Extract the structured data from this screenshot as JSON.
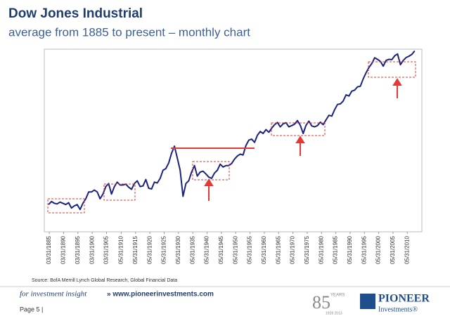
{
  "chart_data": {
    "type": "line",
    "title": "Dow Jones Industrial",
    "subtitle": "average from 1885 to present – monthly chart",
    "source": "Source: BofA Merrill Lynch Global Research, Global Financial Data",
    "color": "#1a237e",
    "yscale": "log",
    "ylim": [
      14,
      16000
    ],
    "xlim": [
      1883.5,
      2015.5
    ],
    "x": [
      1885,
      1886,
      1887,
      1888,
      1889,
      1890,
      1891,
      1892,
      1893,
      1894,
      1895,
      1896,
      1897,
      1898,
      1899,
      1900,
      1901,
      1902,
      1903,
      1904,
      1905,
      1906,
      1907,
      1908,
      1909,
      1910,
      1911,
      1912,
      1913,
      1914,
      1915,
      1916,
      1917,
      1918,
      1919,
      1920,
      1921,
      1922,
      1923,
      1924,
      1925,
      1926,
      1927,
      1928,
      1929,
      1930,
      1931,
      1932,
      1933,
      1934,
      1935,
      1936,
      1937,
      1938,
      1939,
      1940,
      1941,
      1942,
      1943,
      1944,
      1945,
      1946,
      1947,
      1948,
      1949,
      1950,
      1951,
      1952,
      1953,
      1954,
      1955,
      1956,
      1957,
      1958,
      1959,
      1960,
      1961,
      1962,
      1963,
      1964,
      1965,
      1966,
      1967,
      1968,
      1969,
      1970,
      1971,
      1972,
      1973,
      1974,
      1975,
      1976,
      1977,
      1978,
      1979,
      1980,
      1981,
      1982,
      1983,
      1984,
      1985,
      1986,
      1987,
      1988,
      1989,
      1990,
      1991,
      1992,
      1993,
      1994,
      1995,
      1996,
      1997,
      1998,
      1999,
      2000,
      2001,
      2002,
      2003,
      2004,
      2005,
      2006,
      2007,
      2008,
      2009,
      2010,
      2011,
      2012,
      2013
    ],
    "values": [
      40,
      45,
      42,
      41,
      44,
      42,
      40,
      43,
      35,
      38,
      40,
      33,
      42,
      50,
      65,
      65,
      70,
      65,
      50,
      60,
      80,
      90,
      60,
      80,
      95,
      85,
      85,
      88,
      78,
      72,
      90,
      100,
      80,
      82,
      105,
      75,
      73,
      95,
      92,
      110,
      150,
      160,
      200,
      290,
      380,
      240,
      150,
      55,
      90,
      100,
      140,
      180,
      120,
      140,
      145,
      130,
      115,
      110,
      135,
      150,
      190,
      170,
      180,
      180,
      195,
      230,
      260,
      280,
      270,
      390,
      480,
      500,
      440,
      580,
      670,
      620,
      720,
      650,
      760,
      870,
      950,
      800,
      900,
      940,
      800,
      840,
      890,
      1020,
      850,
      620,
      850,
      1000,
      830,
      800,
      840,
      960,
      870,
      1050,
      1250,
      1210,
      1550,
      1900,
      1940,
      2170,
      2750,
      2630,
      3170,
      3300,
      3750,
      3830,
      5100,
      6450,
      7900,
      9200,
      11500,
      10800,
      10000,
      8300,
      10400,
      10800,
      10700,
      12400,
      13300,
      8800,
      10400,
      11600,
      12200,
      13100,
      15000
    ],
    "xticks": [
      {
        "value": 1885.25,
        "label": "03/31/1885"
      },
      {
        "value": 1890.25,
        "label": "03/31/1890"
      },
      {
        "value": 1895.25,
        "label": "03/31/1895"
      },
      {
        "value": 1900.25,
        "label": "03/31/1900"
      },
      {
        "value": 1905.25,
        "label": "03/31/1905"
      },
      {
        "value": 1910.41,
        "label": "05/31/1910"
      },
      {
        "value": 1915.41,
        "label": "05/31/1915"
      },
      {
        "value": 1920.41,
        "label": "05/31/1920"
      },
      {
        "value": 1925.41,
        "label": "05/31/1925"
      },
      {
        "value": 1930.41,
        "label": "05/31/1930"
      },
      {
        "value": 1935.41,
        "label": "05/31/1935"
      },
      {
        "value": 1940.41,
        "label": "05/31/1940"
      },
      {
        "value": 1945.41,
        "label": "05/31/1945"
      },
      {
        "value": 1950.41,
        "label": "05/31/1950"
      },
      {
        "value": 1955.41,
        "label": "05/31/1955"
      },
      {
        "value": 1960.41,
        "label": "05/31/1960"
      },
      {
        "value": 1965.41,
        "label": "05/31/1965"
      },
      {
        "value": 1970.41,
        "label": "05/31/1970"
      },
      {
        "value": 1975.41,
        "label": "05/31/1975"
      },
      {
        "value": 1980.41,
        "label": "05/31/1980"
      },
      {
        "value": 1985.41,
        "label": "05/31/1985"
      },
      {
        "value": 1990.41,
        "label": "05/31/1990"
      },
      {
        "value": 1995.41,
        "label": "05/31/1995"
      },
      {
        "value": 2000.41,
        "label": "05/31/2000"
      },
      {
        "value": 2005.41,
        "label": "05/31/2005"
      },
      {
        "value": 2010.41,
        "label": "05/31/2010"
      }
    ]
  },
  "footer": {
    "tagline": "for investment insight",
    "link": "» www.pioneerinvestments.com",
    "page": "Page 5  |",
    "years_number": "85",
    "years_word": "YEARS",
    "years_range": "1928 2013",
    "brand": "PIONEER",
    "brand_sub": "Investments®"
  }
}
